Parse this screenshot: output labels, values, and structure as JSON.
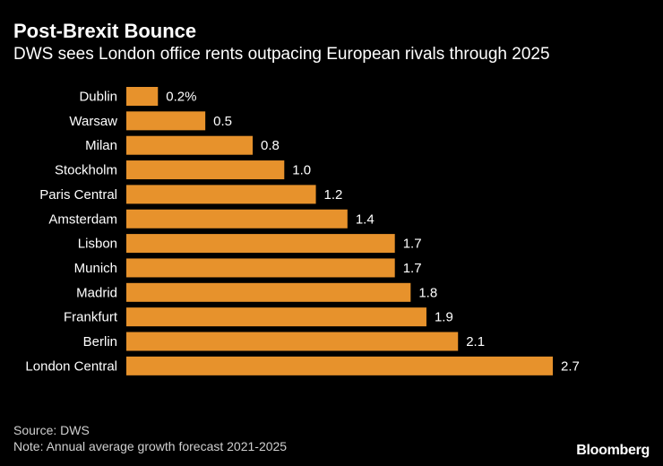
{
  "header": {
    "title": "Post-Brexit Bounce",
    "subtitle": "DWS sees London office rents outpacing European rivals through 2025"
  },
  "footer": {
    "source": "Source: DWS",
    "note": "Note: Annual average growth forecast 2021-2025",
    "brand": "Bloomberg"
  },
  "colors": {
    "bar": "#E7922C",
    "background": "#000000",
    "text": "#FFFFFF"
  },
  "chart_data": {
    "type": "bar",
    "orientation": "horizontal",
    "title": "Post-Brexit Bounce",
    "subtitle": "DWS sees London office rents outpacing European rivals through 2025",
    "xlabel": "",
    "ylabel": "",
    "xlim": [
      0,
      2.7
    ],
    "grid": false,
    "categories": [
      "Dublin",
      "Warsaw",
      "Milan",
      "Stockholm",
      "Paris Central",
      "Amsterdam",
      "Lisbon",
      "Munich",
      "Madrid",
      "Frankfurt",
      "Berlin",
      "London Central"
    ],
    "values": [
      0.2,
      0.5,
      0.8,
      1.0,
      1.2,
      1.4,
      1.7,
      1.7,
      1.8,
      1.9,
      2.1,
      2.7
    ],
    "value_labels": [
      "0.2%",
      "0.5",
      "0.8",
      "1.0",
      "1.2",
      "1.4",
      "1.7",
      "1.7",
      "1.8",
      "1.9",
      "2.1",
      "2.7"
    ]
  }
}
